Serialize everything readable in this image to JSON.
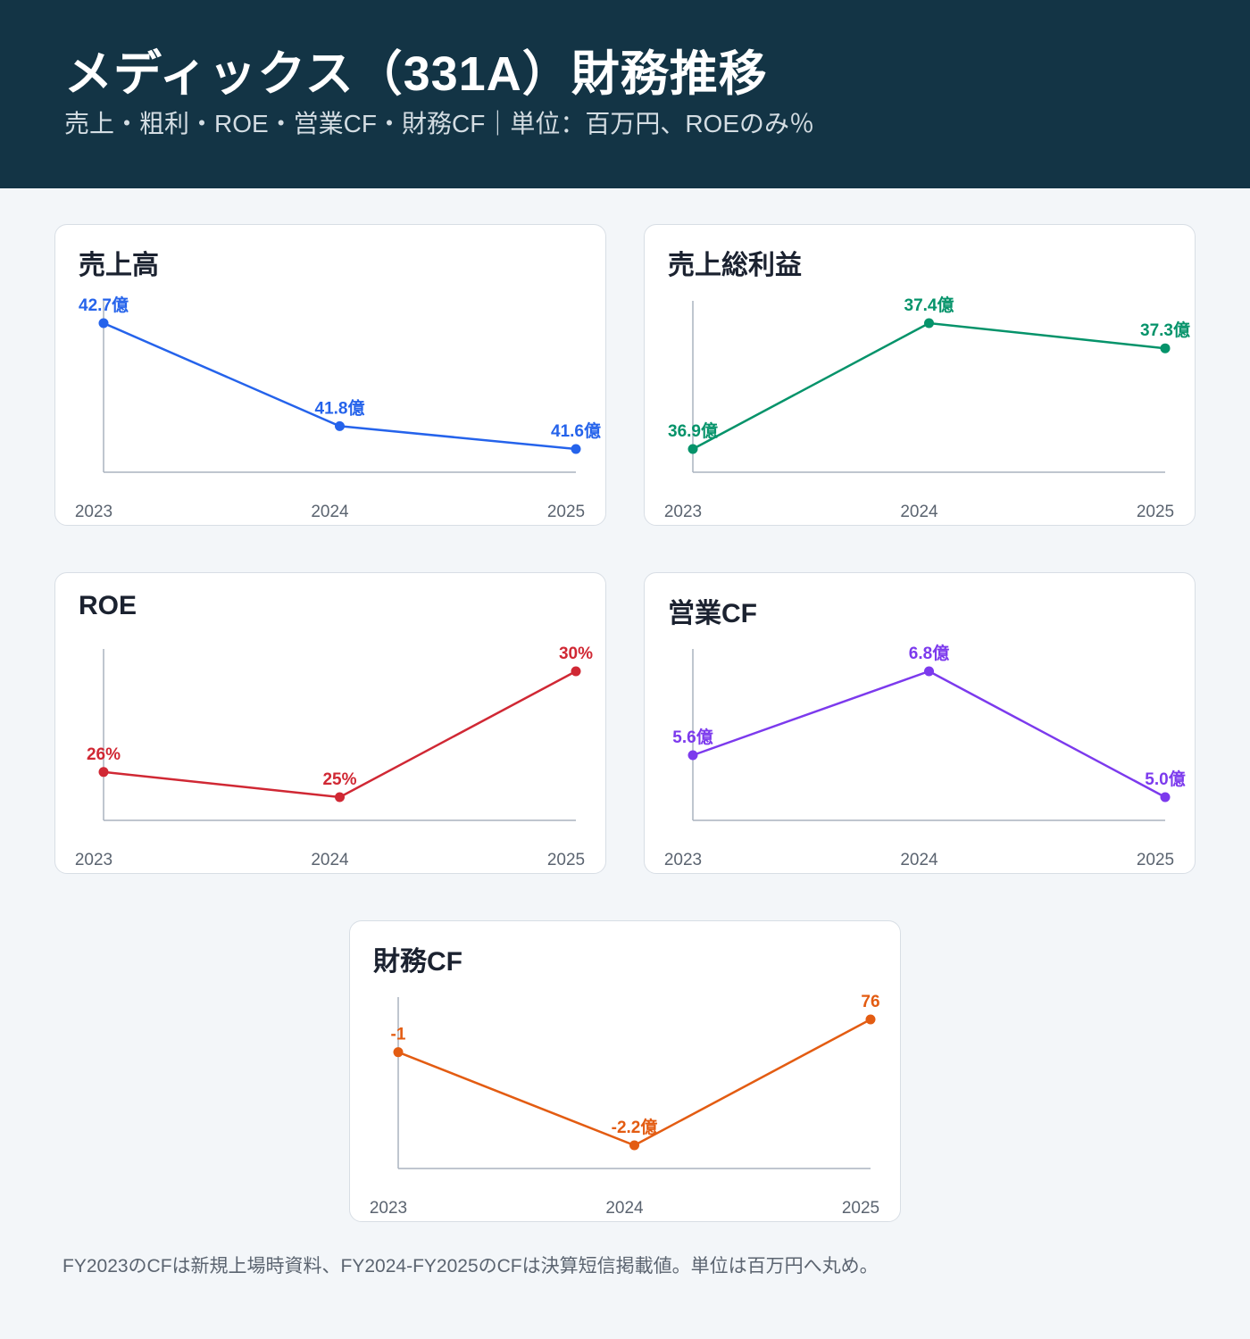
{
  "header": {
    "title": "メディックス（331A）財務推移",
    "subtitle": "売上・粗利・ROE・営業CF・財務CF｜単位：百万円、ROEのみ％"
  },
  "footnote": "FY2023のCFは新規上場時資料、FY2024-FY2025のCFは決算短信掲載値。単位は百万円へ丸め。",
  "chart_data": [
    {
      "type": "line",
      "title": "売上高",
      "color": "#2563eb",
      "x": [
        "2023",
        "2024",
        "2025"
      ],
      "values": [
        4270,
        4180,
        4160
      ],
      "point_labels": [
        "42.7億",
        "41.8億",
        "41.6億"
      ]
    },
    {
      "type": "line",
      "title": "売上総利益",
      "color": "#05936a",
      "x": [
        "2023",
        "2024",
        "2025"
      ],
      "values": [
        3690,
        3740,
        3730
      ],
      "point_labels": [
        "36.9億",
        "37.4億",
        "37.3億"
      ]
    },
    {
      "type": "line",
      "title": "ROE",
      "color": "#d02834",
      "x": [
        "2023",
        "2024",
        "2025"
      ],
      "values": [
        26,
        25,
        30
      ],
      "point_labels": [
        "26%",
        "25%",
        "30%"
      ]
    },
    {
      "type": "line",
      "title": "営業CF",
      "color": "#7c3aed",
      "x": [
        "2023",
        "2024",
        "2025"
      ],
      "values": [
        560,
        680,
        500
      ],
      "point_labels": [
        "5.6億",
        "6.8億",
        "5.0億"
      ]
    },
    {
      "type": "line",
      "title": "財務CF",
      "color": "#e35c12",
      "x": [
        "2023",
        "2024",
        "2025"
      ],
      "values": [
        -1,
        -220,
        76
      ],
      "point_labels": [
        "-1",
        "-2.2億",
        "76"
      ]
    }
  ]
}
